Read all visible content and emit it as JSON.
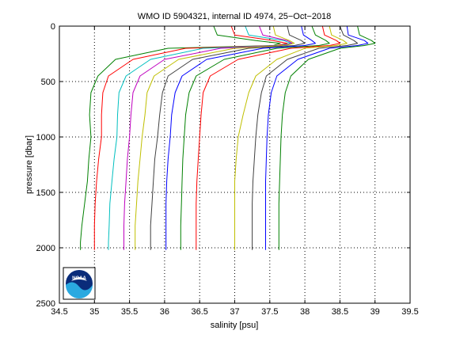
{
  "chart_data": {
    "type": "line",
    "title": "WMO ID 5904321, internal ID 4974, 25−Oct−2018",
    "xlabel": "salinity [psu]",
    "ylabel": "pressure [dbar]",
    "xlim": [
      34.5,
      39.5
    ],
    "ylim": [
      2500,
      0
    ],
    "y_reversed": true,
    "grid": true,
    "grid_style": "dotted",
    "xticks": [
      "34.5",
      "35",
      "35.5",
      "36",
      "36.5",
      "37",
      "37.5",
      "38",
      "38.5",
      "39",
      "39.5"
    ],
    "yticks": [
      "0",
      "500",
      "1000",
      "1500",
      "2000",
      "2500"
    ],
    "logo": {
      "text": "NOAA",
      "placement": "bottom-left"
    },
    "offset_note": "profiles offset horizontally",
    "series": [
      {
        "color": "#008000",
        "x": [
          36.7,
          36.75,
          37.3,
          37.65,
          37.55,
          36.05,
          35.3,
          35.05,
          34.95,
          34.93,
          34.95,
          34.92,
          34.9,
          34.86,
          34.82,
          34.8,
          34.8
        ],
        "y": [
          0,
          80,
          130,
          155,
          175,
          200,
          300,
          450,
          600,
          800,
          1000,
          1200,
          1400,
          1600,
          1800,
          1950,
          2020
        ]
      },
      {
        "color": "#ff0000",
        "x": [
          36.95,
          37.0,
          37.55,
          37.75,
          37.6,
          36.3,
          35.55,
          35.2,
          35.12,
          35.1,
          35.1,
          35.06,
          35.03,
          35.01,
          35.0,
          35.0,
          35.0
        ],
        "y": [
          0,
          80,
          130,
          155,
          175,
          200,
          300,
          450,
          600,
          800,
          1000,
          1200,
          1400,
          1600,
          1800,
          1950,
          2020
        ]
      },
      {
        "color": "#00bfbf",
        "x": [
          37.15,
          37.2,
          37.7,
          37.8,
          37.65,
          36.55,
          35.8,
          35.45,
          35.35,
          35.33,
          35.32,
          35.28,
          35.25,
          35.22,
          35.21,
          35.2,
          35.2
        ],
        "y": [
          0,
          80,
          130,
          155,
          175,
          200,
          300,
          450,
          600,
          800,
          1000,
          1200,
          1400,
          1600,
          1800,
          1950,
          2020
        ]
      },
      {
        "color": "#bf00bf",
        "x": [
          37.35,
          37.4,
          37.75,
          37.82,
          37.7,
          36.8,
          36.0,
          35.65,
          35.55,
          35.52,
          35.5,
          35.47,
          35.45,
          35.43,
          35.42,
          35.42,
          35.42
        ],
        "y": [
          0,
          80,
          130,
          155,
          175,
          200,
          300,
          450,
          600,
          800,
          1000,
          1200,
          1400,
          1600,
          1800,
          1950,
          2020
        ]
      },
      {
        "color": "#bfbf00",
        "x": [
          37.55,
          37.58,
          37.78,
          37.85,
          37.72,
          37.0,
          36.2,
          35.85,
          35.75,
          35.72,
          35.68,
          35.65,
          35.62,
          35.6,
          35.58,
          35.58,
          35.58
        ],
        "y": [
          0,
          80,
          130,
          155,
          175,
          200,
          300,
          450,
          600,
          800,
          1000,
          1200,
          1400,
          1600,
          1800,
          1950,
          2020
        ]
      },
      {
        "color": "#404040",
        "x": [
          37.75,
          37.78,
          37.95,
          38.0,
          37.85,
          37.2,
          36.4,
          36.05,
          35.97,
          35.93,
          35.9,
          35.86,
          35.84,
          35.82,
          35.8,
          35.8,
          35.8
        ],
        "y": [
          0,
          80,
          130,
          155,
          175,
          200,
          300,
          450,
          600,
          800,
          1000,
          1200,
          1400,
          1600,
          1800,
          1950,
          2020
        ]
      },
      {
        "color": "#0000ff",
        "x": [
          37.95,
          37.98,
          38.1,
          38.15,
          38.0,
          37.4,
          36.6,
          36.25,
          36.15,
          36.1,
          36.08,
          36.05,
          36.03,
          36.02,
          36.02,
          36.02,
          36.02
        ],
        "y": [
          0,
          80,
          130,
          155,
          175,
          200,
          300,
          450,
          600,
          800,
          1000,
          1200,
          1400,
          1600,
          1800,
          1950,
          2020
        ]
      },
      {
        "color": "#008000",
        "x": [
          38.1,
          38.15,
          38.3,
          38.35,
          38.2,
          37.6,
          36.85,
          36.45,
          36.35,
          36.3,
          36.28,
          36.26,
          36.25,
          36.24,
          36.23,
          36.23,
          36.23
        ],
        "y": [
          0,
          80,
          130,
          155,
          175,
          200,
          300,
          450,
          600,
          800,
          1000,
          1200,
          1400,
          1600,
          1800,
          1950,
          2020
        ]
      },
      {
        "color": "#ff0000",
        "x": [
          38.25,
          38.28,
          38.45,
          38.5,
          38.35,
          37.8,
          37.05,
          36.65,
          36.55,
          36.52,
          36.5,
          36.48,
          36.46,
          36.45,
          36.45,
          36.45,
          36.45
        ],
        "y": [
          0,
          80,
          130,
          155,
          175,
          200,
          300,
          450,
          600,
          800,
          1000,
          1200,
          1400,
          1600,
          1800,
          1950,
          2020
        ]
      },
      {
        "color": "#bfbf00",
        "x": [
          38.35,
          38.38,
          38.55,
          38.6,
          38.45,
          38.0,
          37.6,
          37.3,
          37.2,
          37.12,
          37.05,
          37.02,
          37.0,
          37.0,
          37.0,
          37.0,
          37.0
        ],
        "y": [
          0,
          80,
          130,
          155,
          175,
          200,
          300,
          450,
          600,
          800,
          1000,
          1200,
          1400,
          1600,
          1800,
          1950,
          2020
        ]
      },
      {
        "color": "#404040",
        "x": [
          38.5,
          38.55,
          38.7,
          38.75,
          38.6,
          38.2,
          37.75,
          37.45,
          37.38,
          37.33,
          37.3,
          37.28,
          37.26,
          37.25,
          37.25,
          37.25,
          37.25
        ],
        "y": [
          0,
          80,
          130,
          155,
          175,
          200,
          300,
          450,
          600,
          800,
          1000,
          1200,
          1400,
          1600,
          1800,
          1950,
          2020
        ]
      },
      {
        "color": "#0000ff",
        "x": [
          38.6,
          38.62,
          38.85,
          38.9,
          38.75,
          38.35,
          37.9,
          37.6,
          37.52,
          37.48,
          37.46,
          37.45,
          37.44,
          37.44,
          37.44,
          37.44,
          37.44
        ],
        "y": [
          0,
          80,
          130,
          155,
          175,
          200,
          300,
          450,
          600,
          800,
          1000,
          1200,
          1400,
          1600,
          1800,
          1950,
          2020
        ]
      },
      {
        "color": "#008000",
        "x": [
          38.75,
          38.78,
          38.95,
          39.0,
          38.85,
          38.5,
          38.05,
          37.8,
          37.72,
          37.68,
          37.66,
          37.65,
          37.64,
          37.63,
          37.63,
          37.63,
          37.63
        ],
        "y": [
          0,
          80,
          130,
          155,
          175,
          200,
          300,
          450,
          600,
          800,
          1000,
          1200,
          1400,
          1600,
          1800,
          1950,
          2020
        ]
      }
    ]
  }
}
